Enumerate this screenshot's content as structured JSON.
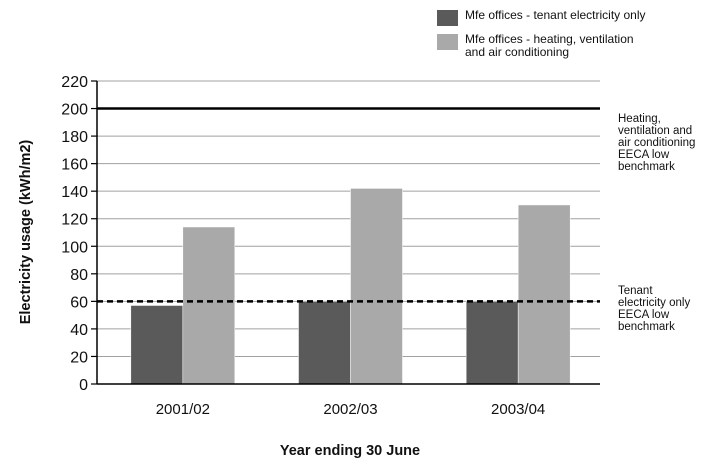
{
  "legend": {
    "items": [
      {
        "label": "Mfe offices - tenant electricity only",
        "color": "#5a5a5a"
      },
      {
        "label": "Mfe offices - heating, ventilation and air conditioning",
        "label_lines": [
          "Mfe offices - heating, ventilation",
          "and air conditioning"
        ],
        "color": "#a9a9a9"
      }
    ]
  },
  "reference_lines": [
    {
      "label_lines": [
        "Heating,",
        "ventilation and",
        "air conditioning",
        "EECA low",
        "benchmark"
      ],
      "value": 200,
      "style": "solid",
      "color": "#000000"
    },
    {
      "label_lines": [
        "Tenant",
        "electricity only",
        "EECA low",
        "benchmark"
      ],
      "value": 60,
      "style": "dashed",
      "color": "#000000"
    }
  ],
  "chart_data": {
    "type": "bar",
    "categories": [
      "2001/02",
      "2002/03",
      "2003/04"
    ],
    "series": [
      {
        "name": "Mfe offices - tenant electricity only",
        "values": [
          57,
          60,
          60
        ],
        "color": "#5a5a5a"
      },
      {
        "name": "Mfe offices - heating, ventilation and air conditioning",
        "values": [
          114,
          142,
          130
        ],
        "color": "#a9a9a9"
      }
    ],
    "xlabel": "Year ending 30 June",
    "ylabel": "Electricity usage (kWh/m2)",
    "ylim": [
      0,
      220
    ],
    "yticks": [
      0,
      20,
      40,
      60,
      80,
      100,
      120,
      140,
      160,
      180,
      200,
      220
    ],
    "grid": true
  }
}
